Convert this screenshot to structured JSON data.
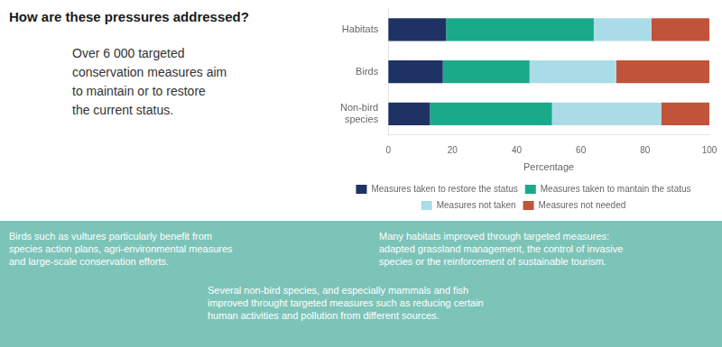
{
  "chart_data": {
    "type": "bar",
    "orientation": "horizontal",
    "stacked": true,
    "title": "How are these pressures addressed?",
    "subtitle": "Over 6 000 targeted\nconservation measures aim\nto maintain or to restore\nthe current status.",
    "annotations": [
      "Birds such as vultures particularly benefit from\nspecies action plans, agri-environmental measures\nand large-scale conservation efforts.",
      "Many habitats improved through targeted measures:\nadapted grassland management, the control of invasive\nspecies  or the reinforcement of sustainable tourism.",
      "Several non-bird species, and especially mammals and fish\nimproved throught targeted measures such as reducing certain\nhuman activities and pollution from different sources."
    ],
    "categories": [
      "Non-bird\nspecies",
      "Birds",
      "Habitats"
    ],
    "series": [
      {
        "name": "Measures taken to restore the status",
        "color": "#1e3264",
        "values": [
          13,
          17,
          18
        ]
      },
      {
        "name": "Measures taken to mantain the status",
        "color": "#1aaa8a",
        "values": [
          38,
          27,
          46
        ]
      },
      {
        "name": "Measures not taken",
        "color": "#aadce8",
        "values": [
          34,
          27,
          18
        ]
      },
      {
        "name": "Measures not needed",
        "color": "#c0533a",
        "values": [
          15,
          29,
          18
        ]
      }
    ],
    "xlabel": "Percentage",
    "xlim": [
      0,
      100
    ],
    "xticks": [
      0,
      20,
      40,
      60,
      80,
      100
    ],
    "grid": false,
    "legend": "bottom"
  }
}
